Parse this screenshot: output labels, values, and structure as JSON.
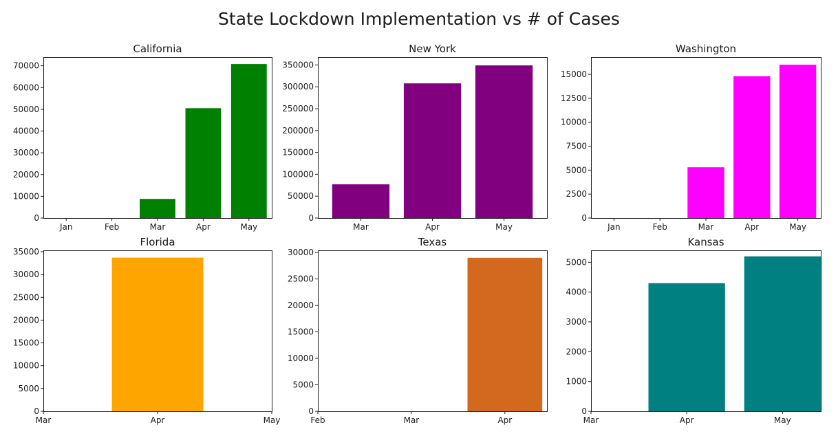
{
  "figure": {
    "title": "State Lockdown Implementation vs # of Cases"
  },
  "chart_data": [
    {
      "type": "bar",
      "title": "California",
      "color": "#008000",
      "xlim": [
        -0.5,
        4.5
      ],
      "ylim": [
        0,
        74000
      ],
      "x_ticks": [
        0,
        1,
        2,
        3,
        4
      ],
      "x_tick_labels": [
        "Jan",
        "Feb",
        "Mar",
        "Apr",
        "May"
      ],
      "y_ticks": [
        0,
        10000,
        20000,
        30000,
        40000,
        50000,
        60000,
        70000
      ],
      "y_tick_labels": [
        "0",
        "10000",
        "20000",
        "30000",
        "40000",
        "50000",
        "60000",
        "70000"
      ],
      "bars": [
        {
          "category": "Mar",
          "x": 2,
          "value": 8800
        },
        {
          "category": "Apr",
          "x": 3,
          "value": 50500
        },
        {
          "category": "May",
          "x": 4,
          "value": 70800
        }
      ]
    },
    {
      "type": "bar",
      "title": "New York",
      "color": "#800080",
      "xlim": [
        -0.6,
        2.6
      ],
      "ylim": [
        0,
        368000
      ],
      "x_ticks": [
        0,
        1,
        2
      ],
      "x_tick_labels": [
        "Mar",
        "Apr",
        "May"
      ],
      "y_ticks": [
        0,
        50000,
        100000,
        150000,
        200000,
        250000,
        300000,
        350000
      ],
      "y_tick_labels": [
        "0",
        "50000",
        "100000",
        "150000",
        "200000",
        "250000",
        "300000",
        "350000"
      ],
      "bars": [
        {
          "category": "Mar",
          "x": 0,
          "value": 77000
        },
        {
          "category": "Apr",
          "x": 1,
          "value": 308000
        },
        {
          "category": "May",
          "x": 2,
          "value": 349000
        }
      ]
    },
    {
      "type": "bar",
      "title": "Washington",
      "color": "#ff00ff",
      "xlim": [
        -0.5,
        4.5
      ],
      "ylim": [
        0,
        16800
      ],
      "x_ticks": [
        0,
        1,
        2,
        3,
        4
      ],
      "x_tick_labels": [
        "Jan",
        "Feb",
        "Mar",
        "Apr",
        "May"
      ],
      "y_ticks": [
        0,
        2500,
        5000,
        7500,
        10000,
        12500,
        15000
      ],
      "y_tick_labels": [
        "0",
        "2500",
        "5000",
        "7500",
        "10000",
        "12500",
        "15000"
      ],
      "bars": [
        {
          "category": "Mar",
          "x": 2,
          "value": 5300
        },
        {
          "category": "Apr",
          "x": 3,
          "value": 14800
        },
        {
          "category": "May",
          "x": 4,
          "value": 16000
        }
      ]
    },
    {
      "type": "bar",
      "title": "Florida",
      "color": "#ffa500",
      "xlim": [
        0,
        2
      ],
      "ylim": [
        0,
        35300
      ],
      "x_ticks": [
        0,
        1,
        2
      ],
      "x_tick_labels": [
        "Mar",
        "Apr",
        "May"
      ],
      "y_ticks": [
        0,
        5000,
        10000,
        15000,
        20000,
        25000,
        30000,
        35000
      ],
      "y_tick_labels": [
        "0",
        "5000",
        "10000",
        "15000",
        "20000",
        "25000",
        "30000",
        "35000"
      ],
      "bars": [
        {
          "category": "Apr",
          "x": 1,
          "value": 33700
        }
      ]
    },
    {
      "type": "bar",
      "title": "Texas",
      "color": "#d2691e",
      "xlim": [
        0,
        2.45
      ],
      "ylim": [
        0,
        30400
      ],
      "x_ticks": [
        0,
        1,
        2
      ],
      "x_tick_labels": [
        "Feb",
        "Mar",
        "Apr"
      ],
      "y_ticks": [
        0,
        5000,
        10000,
        15000,
        20000,
        25000,
        30000
      ],
      "y_tick_labels": [
        "0",
        "5000",
        "10000",
        "15000",
        "20000",
        "25000",
        "30000"
      ],
      "bars": [
        {
          "category": "Apr",
          "x": 2,
          "value": 29000
        }
      ]
    },
    {
      "type": "bar",
      "title": "Kansas",
      "color": "#008080",
      "xlim": [
        0,
        2.4
      ],
      "ylim": [
        0,
        5400
      ],
      "x_ticks": [
        0,
        1,
        2
      ],
      "x_tick_labels": [
        "Mar",
        "Apr",
        "May"
      ],
      "y_ticks": [
        0,
        1000,
        2000,
        3000,
        4000,
        5000
      ],
      "y_tick_labels": [
        "0",
        "1000",
        "2000",
        "3000",
        "4000",
        "5000"
      ],
      "bars": [
        {
          "category": "Apr",
          "x": 1,
          "value": 4300
        },
        {
          "category": "May",
          "x": 2,
          "value": 5200
        }
      ]
    }
  ]
}
